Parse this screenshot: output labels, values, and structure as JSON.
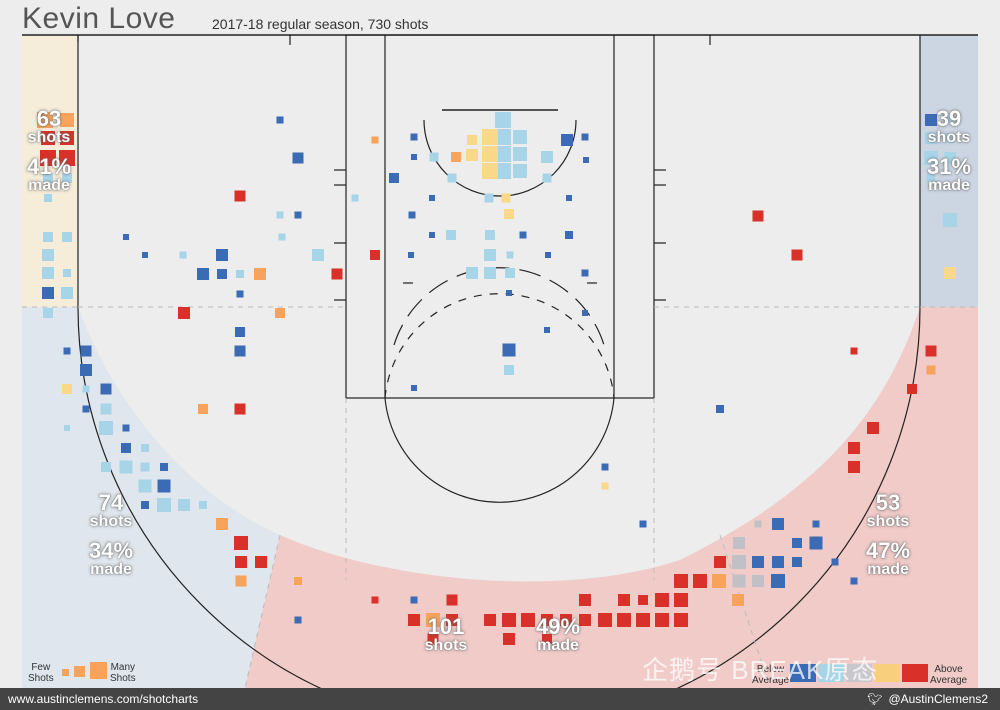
{
  "header": {
    "title": "Kevin Love",
    "subtitle": "2017-18 regular season, 730 shots"
  },
  "zones": [
    {
      "id": "left-corner",
      "shots": "63",
      "shots_label": "shots",
      "pct": "41%",
      "pct_label": "made",
      "color": "#f7ebd3"
    },
    {
      "id": "right-corner",
      "shots": "39",
      "shots_label": "shots",
      "pct": "31%",
      "pct_label": "made",
      "color": "#c6d2e1"
    },
    {
      "id": "left-wing",
      "shots": "74",
      "shots_label": "shots",
      "pct": "34%",
      "pct_label": "made",
      "color": "#dee5ec"
    },
    {
      "id": "right-wing",
      "shots": "53",
      "shots_label": "shots",
      "pct": "47%",
      "pct_label": "made",
      "color": "#f0c9c6"
    },
    {
      "id": "top-key",
      "shots": "101",
      "shots_label": "shots",
      "pct": "49%",
      "pct_label": "made",
      "color": "#f0c9c6"
    }
  ],
  "legend": {
    "few": "Few\nShots",
    "many": "Many\nShots",
    "below": "Below\nAverage",
    "above": "Above\nAverage",
    "colors": [
      "#3b6bb5",
      "#a8d4e8",
      "#c8c8cc",
      "#f7cf7d",
      "#d93129"
    ]
  },
  "footer": {
    "left": "www.austinclemens.com/shotcharts",
    "right": "@AustinClemens2"
  },
  "watermark": "企鹅号 BREAK原态",
  "chart_data": {
    "type": "scatter",
    "title": "Kevin Love",
    "subtitle": "2017-18 regular season, 730 shots",
    "encoding": "square size = shot frequency; color = FG% vs league average (blue below, red above)",
    "color_scale": {
      "below": "#3b6bb5",
      "slightly_below": "#a8d4e8",
      "average": "#c8c8cc",
      "slightly_above": "#f7cf7d",
      "above": "#d93129"
    },
    "zone_totals": [
      {
        "zone": "Left corner three",
        "shots": 63,
        "made_pct": 41
      },
      {
        "zone": "Right corner three",
        "shots": 39,
        "made_pct": 31
      },
      {
        "zone": "Left wing three",
        "shots": 74,
        "made_pct": 34
      },
      {
        "zone": "Right wing three",
        "shots": 53,
        "made_pct": 47
      },
      {
        "zone": "Top of key three",
        "shots": 101,
        "made_pct": 49
      }
    ],
    "total_shots": 730,
    "grid": false
  }
}
